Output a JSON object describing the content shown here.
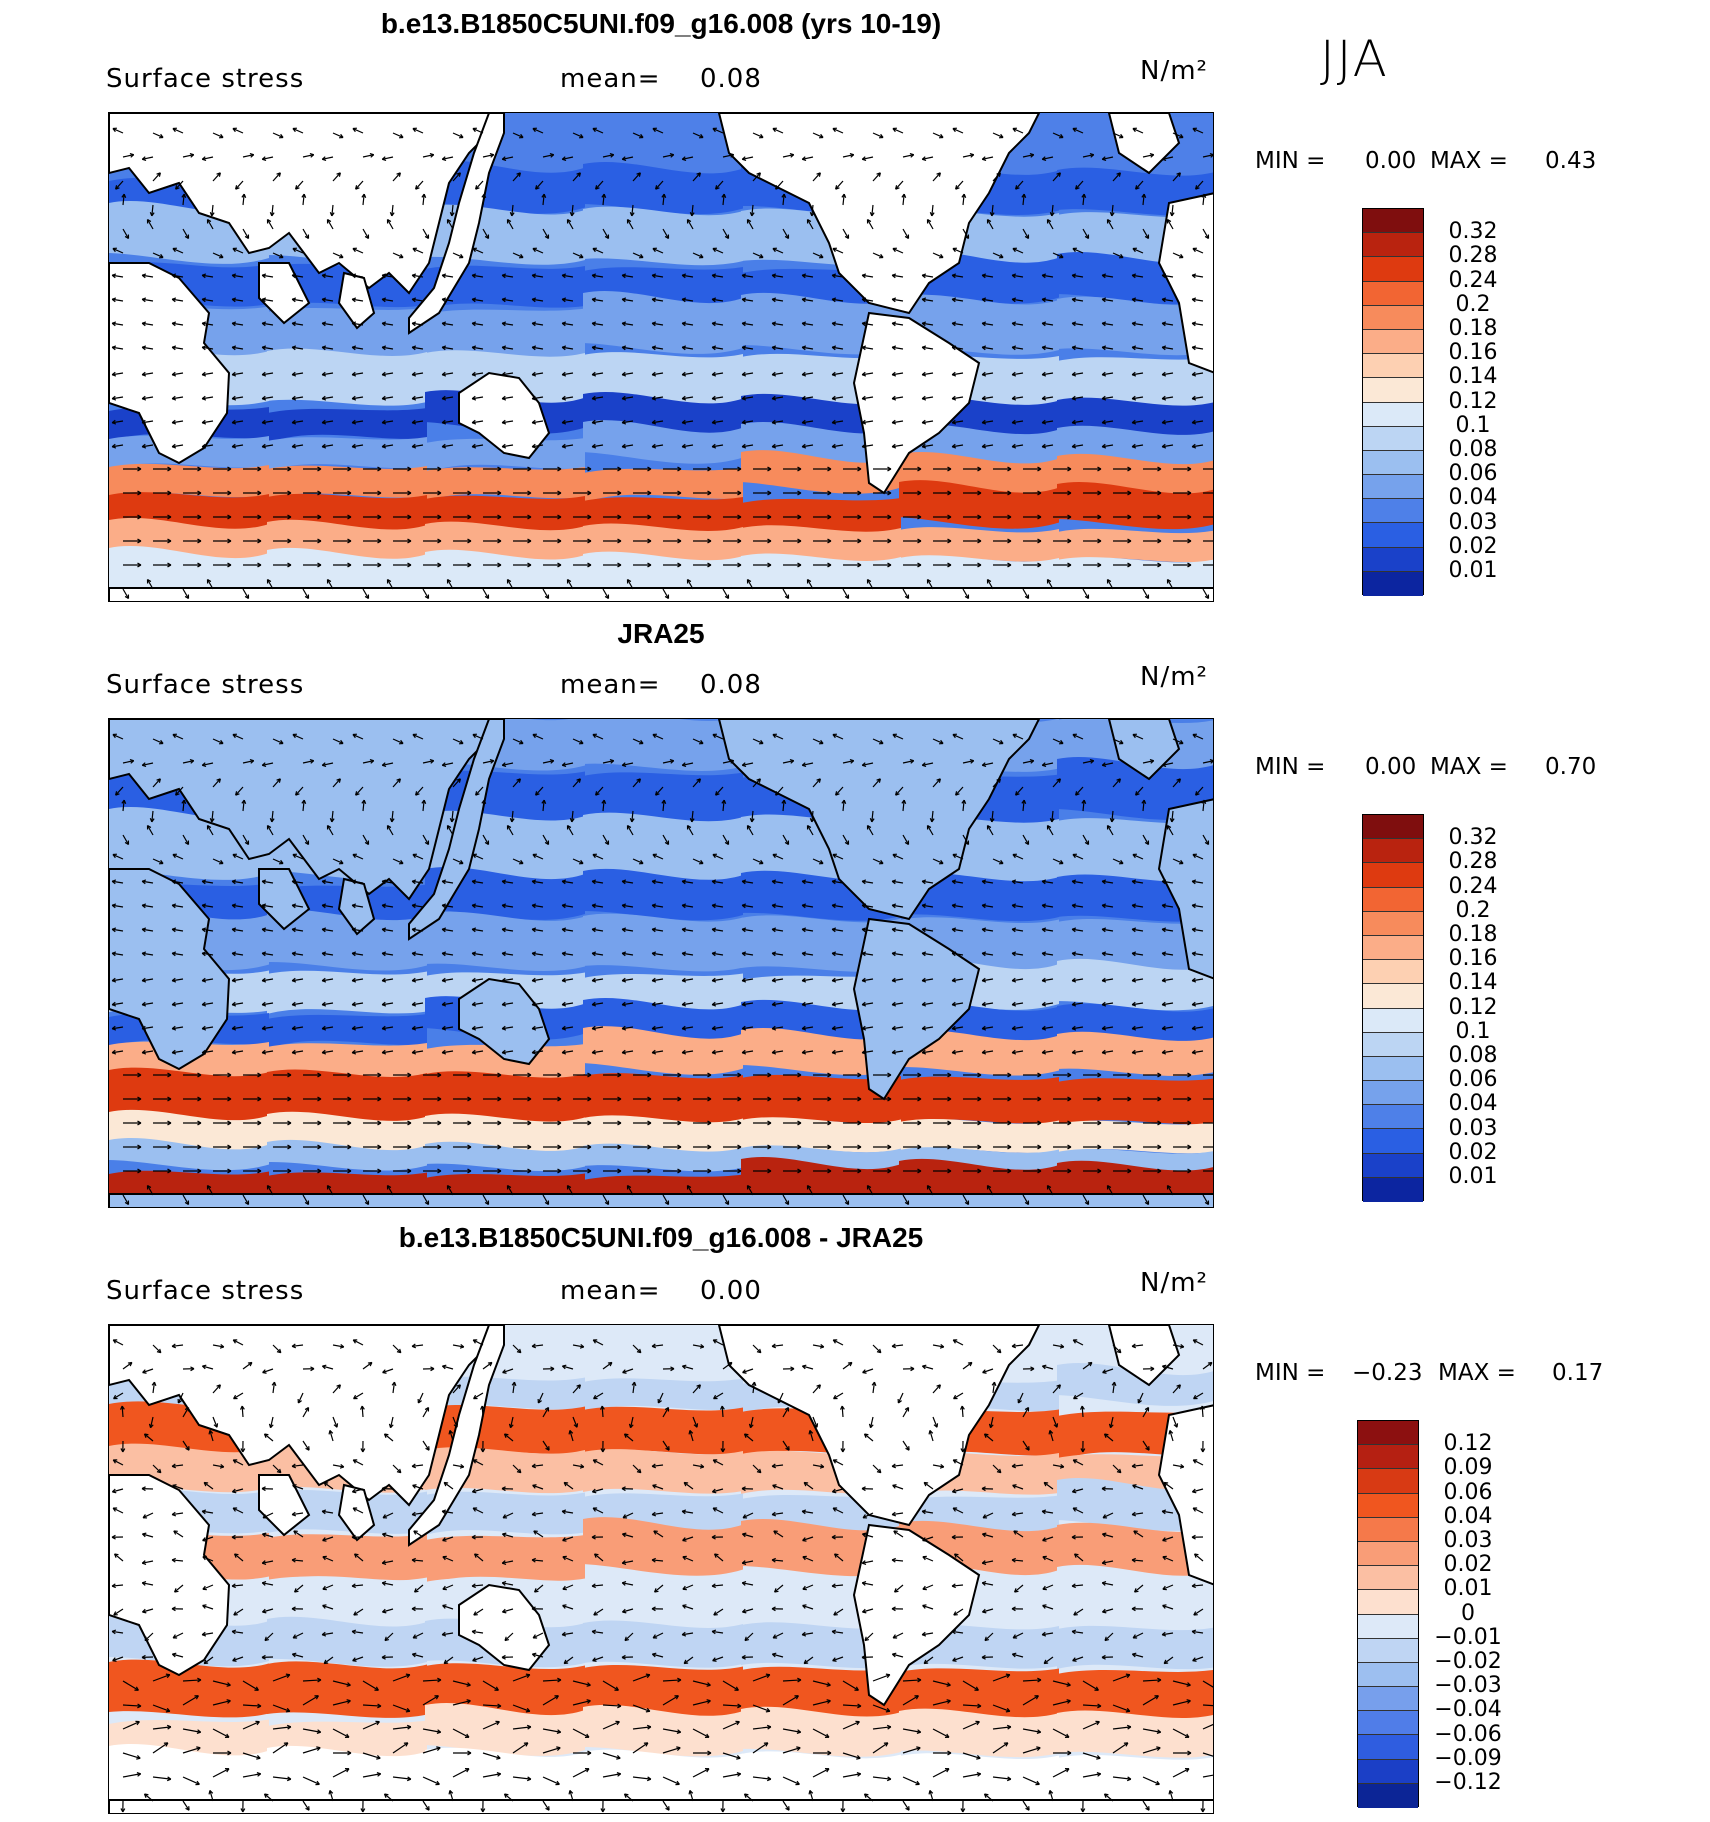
{
  "season": "JJA",
  "panels": [
    {
      "title": "b.e13.B1850C5UNI.f09_g16.008 (yrs 10-19)",
      "variable": "Surface stress",
      "mean_label": "mean=",
      "mean_value": "0.08",
      "units": "N/m²",
      "min_label": "MIN =",
      "min_value": "0.00",
      "max_label": "MAX =",
      "max_value": "0.43",
      "colorbar": {
        "ticks": [
          "0.32",
          "0.28",
          "0.24",
          "0.2",
          "0.18",
          "0.16",
          "0.14",
          "0.12",
          "0.1",
          "0.08",
          "0.06",
          "0.04",
          "0.03",
          "0.02",
          "0.01"
        ],
        "colors": [
          "#7f0e0e",
          "#b9230f",
          "#de3a10",
          "#f26533",
          "#f78b5c",
          "#fbad88",
          "#fdd0b2",
          "#fbe8d6",
          "#dbe9f8",
          "#bcd5f3",
          "#9bbff0",
          "#76a2ec",
          "#4e80e8",
          "#2a5fe3",
          "#1a41c9",
          "#0c25a0"
        ]
      }
    },
    {
      "title": "JRA25",
      "variable": "Surface stress",
      "mean_label": "mean=",
      "mean_value": "0.08",
      "units": "N/m²",
      "min_label": "MIN =",
      "min_value": "0.00",
      "max_label": "MAX =",
      "max_value": "0.70",
      "colorbar": {
        "ticks": [
          "0.32",
          "0.28",
          "0.24",
          "0.2",
          "0.18",
          "0.16",
          "0.14",
          "0.12",
          "0.1",
          "0.08",
          "0.06",
          "0.04",
          "0.03",
          "0.02",
          "0.01"
        ],
        "colors": [
          "#7f0e0e",
          "#b9230f",
          "#de3a10",
          "#f26533",
          "#f78b5c",
          "#fbad88",
          "#fdd0b2",
          "#fbe8d6",
          "#dbe9f8",
          "#bcd5f3",
          "#9bbff0",
          "#76a2ec",
          "#4e80e8",
          "#2a5fe3",
          "#1a41c9",
          "#0c25a0"
        ]
      }
    },
    {
      "title": "b.e13.B1850C5UNI.f09_g16.008 - JRA25",
      "variable": "Surface stress",
      "mean_label": "mean=",
      "mean_value": "0.00",
      "units": "N/m²",
      "min_label": "MIN =",
      "min_value": "−0.23",
      "max_label": "MAX =",
      "max_value": "0.17",
      "colorbar": {
        "ticks": [
          "0.12",
          "0.09",
          "0.06",
          "0.04",
          "0.03",
          "0.02",
          "0.01",
          "0",
          "−0.01",
          "−0.02",
          "−0.03",
          "−0.04",
          "−0.06",
          "−0.09",
          "−0.12"
        ],
        "colors": [
          "#8c1010",
          "#b52012",
          "#d83a14",
          "#f0561f",
          "#f5794a",
          "#f99d77",
          "#fbbfa3",
          "#fde0cf",
          "#dde9f8",
          "#bfd5f3",
          "#9dbff0",
          "#779fec",
          "#507de8",
          "#2f5de0",
          "#1b3fc6",
          "#0c2596"
        ]
      }
    }
  ]
}
